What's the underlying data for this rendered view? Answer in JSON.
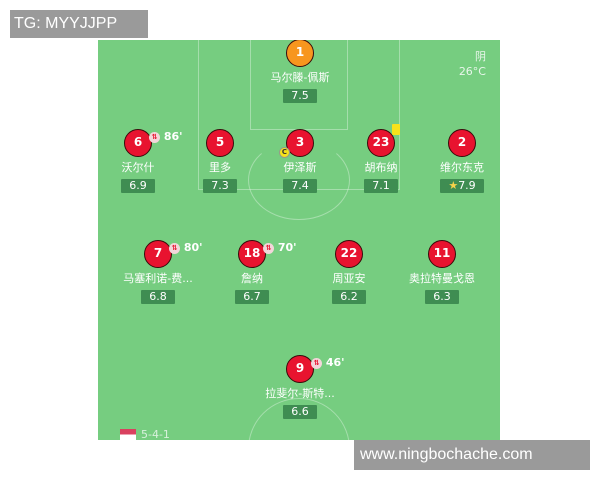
{
  "watermark_top": "TG: MYYJJPP",
  "watermark_bottom": "www.ningbochache.com",
  "weather": {
    "condition": "阴",
    "temperature": "26°C"
  },
  "formation": "5-4-1",
  "colors": {
    "pitch": "#76cd80",
    "player": "#e8132f",
    "goalkeeper": "#f7961e",
    "rating_bg": "#3f8d52"
  },
  "players": [
    {
      "number": "1",
      "name": "马尔滕-佩斯",
      "rating": "7.5",
      "gk": true
    },
    {
      "number": "6",
      "name": "沃尔什",
      "rating": "6.9",
      "sub_minute": "86'"
    },
    {
      "number": "5",
      "name": "里多",
      "rating": "7.3"
    },
    {
      "number": "3",
      "name": "伊泽斯",
      "rating": "7.4",
      "captain": "C"
    },
    {
      "number": "23",
      "name": "胡布纳",
      "rating": "7.1",
      "yellow_card": true
    },
    {
      "number": "2",
      "name": "维尔东克",
      "rating": "7.9",
      "star": true
    },
    {
      "number": "7",
      "name": "马塞利诺-费...",
      "rating": "6.8",
      "sub_minute": "80'"
    },
    {
      "number": "18",
      "name": "詹纳",
      "rating": "6.7",
      "sub_minute": "70'"
    },
    {
      "number": "22",
      "name": "周亚安",
      "rating": "6.2"
    },
    {
      "number": "11",
      "name": "奥拉特曼戈恩",
      "rating": "6.3"
    },
    {
      "number": "9",
      "name": "拉斐尔-斯特...",
      "rating": "6.6",
      "sub_minute": "46'"
    }
  ]
}
